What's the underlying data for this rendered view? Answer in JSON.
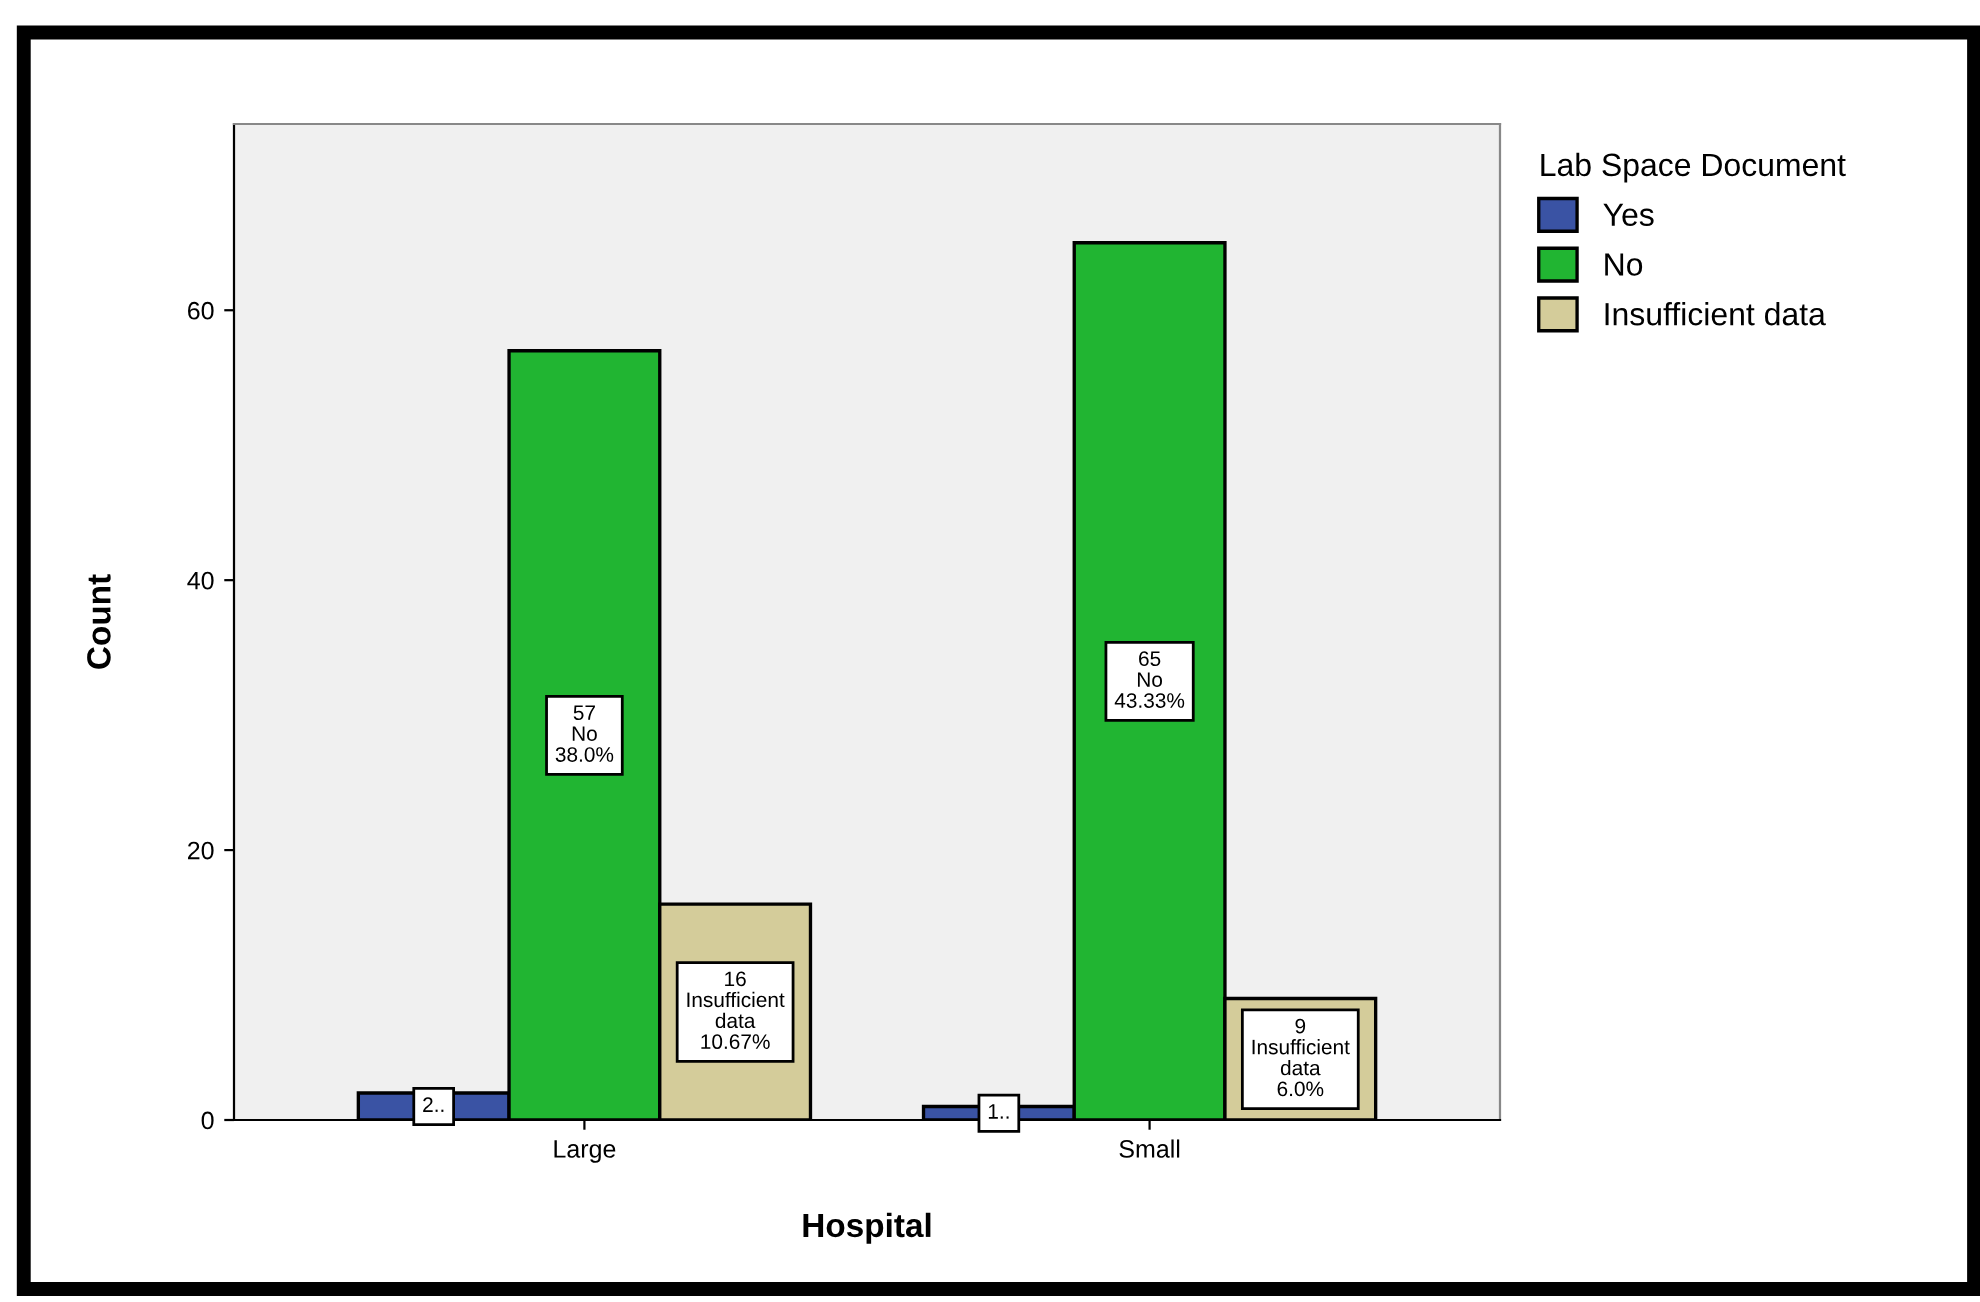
{
  "chart_data": {
    "type": "bar",
    "xlabel": "Hospital",
    "ylabel": "Count",
    "legend_title": "Lab Space Document",
    "categories": [
      "Large",
      "Small"
    ],
    "series": [
      {
        "name": "Yes",
        "color": "#3a53a4",
        "values": [
          2,
          1
        ],
        "value_labels": [
          "2..",
          "1.."
        ]
      },
      {
        "name": "No",
        "color": "#21b532",
        "values": [
          57,
          65
        ],
        "value_labels": [
          "57\nNo\n38.0%",
          "65\nNo\n43.33%"
        ]
      },
      {
        "name": "Insufficient data",
        "color": "#d4cc9a",
        "values": [
          16,
          9
        ],
        "value_labels": [
          "16\nInsufficient\ndata\n10.67%",
          "9\nInsufficient\ndata\n6.0%"
        ]
      }
    ],
    "ylim": [
      0,
      73.8
    ],
    "yticks": [
      0,
      20,
      40,
      60
    ],
    "grid": false,
    "legend": "top right"
  }
}
